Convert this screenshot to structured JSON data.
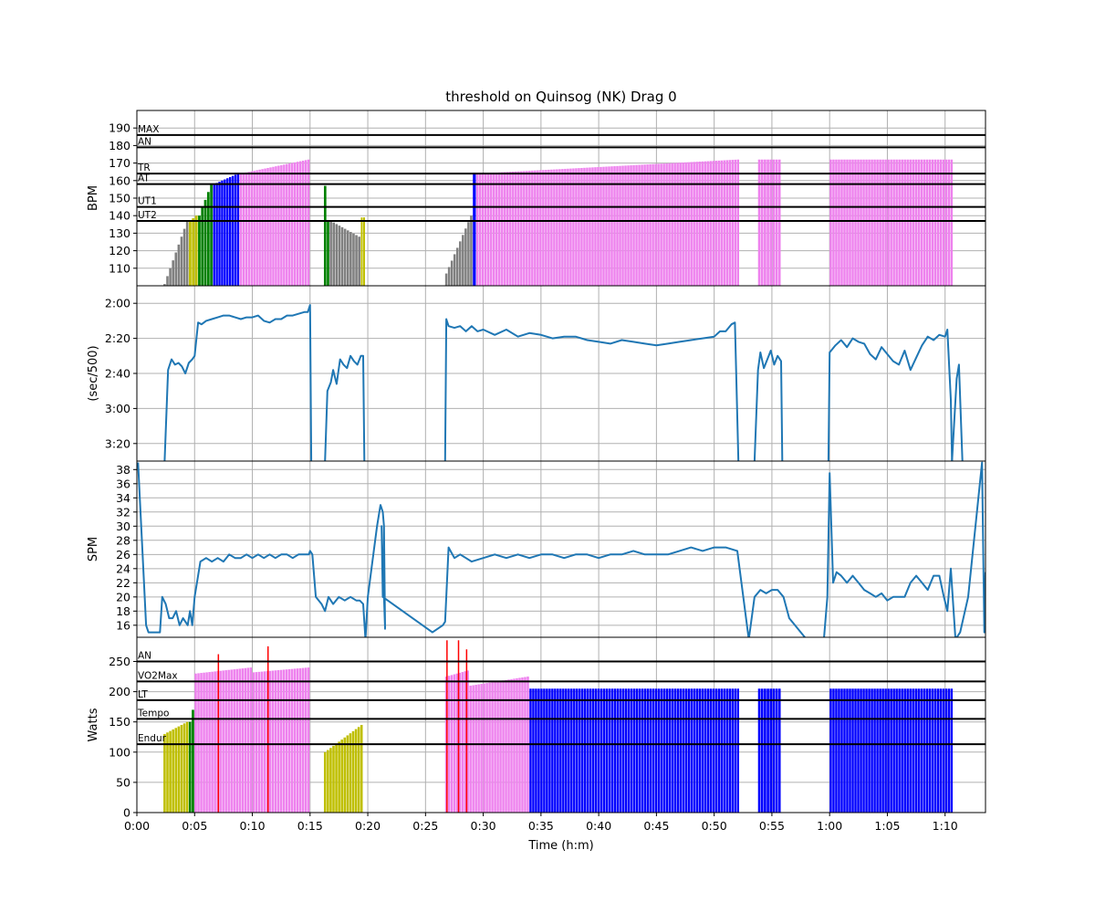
{
  "chart_data": {
    "title": "threshold on Quinsog (NK) Drag 0",
    "xlabel": "Time (h:m)",
    "x_unit": "minutes",
    "xlim": [
      0,
      73.5
    ],
    "x_ticks": [
      0,
      5,
      10,
      15,
      20,
      25,
      30,
      35,
      40,
      45,
      50,
      55,
      60,
      65,
      70
    ],
    "x_tick_labels": [
      "0:00",
      "0:05",
      "0:10",
      "0:15",
      "0:20",
      "0:25",
      "0:30",
      "0:35",
      "0:40",
      "0:45",
      "0:50",
      "0:55",
      "1:00",
      "1:05",
      "1:10"
    ],
    "colors": {
      "gray": "#808080",
      "yellow": "#bfbf00",
      "green": "#008000",
      "blue": "#0000ff",
      "violet": "#ee82ee",
      "red": "#ff0000",
      "line": "#1f77b4"
    },
    "panels": [
      {
        "id": "hr",
        "type": "bar",
        "ylabel": "BPM",
        "ylim": [
          100,
          200
        ],
        "y_ticks": [
          110,
          120,
          130,
          140,
          150,
          160,
          170,
          180,
          190
        ],
        "y_tick_labels": [
          "110",
          "120",
          "130",
          "140",
          "150",
          "160",
          "170",
          "180",
          "190"
        ],
        "zones": [
          {
            "label": "MAX",
            "value": 186
          },
          {
            "label": "AN",
            "value": 179
          },
          {
            "label": "TR",
            "value": 164
          },
          {
            "label": "AT",
            "value": 158
          },
          {
            "label": "UT1",
            "value": 145
          },
          {
            "label": "UT2",
            "value": 137
          }
        ],
        "segments": [
          {
            "x0": 2.3,
            "x1": 4.5,
            "y0": 101,
            "y1": 137,
            "color": "gray"
          },
          {
            "x0": 4.5,
            "x1": 5.3,
            "y0": 137,
            "y1": 140,
            "color": "yellow"
          },
          {
            "x0": 5.3,
            "x1": 6.6,
            "y0": 140,
            "y1": 158,
            "color": "green"
          },
          {
            "x0": 6.6,
            "x1": 8.9,
            "y0": 158,
            "y1": 164,
            "color": "blue"
          },
          {
            "x0": 8.9,
            "x1": 15.0,
            "y0": 164,
            "y1": 172,
            "color": "violet"
          },
          {
            "x0": 16.2,
            "x1": 16.7,
            "y0": 157,
            "y1": 137,
            "color": "green"
          },
          {
            "x0": 16.7,
            "x1": 19.4,
            "y0": 137,
            "y1": 128,
            "color": "gray"
          },
          {
            "x0": 19.4,
            "x1": 19.8,
            "y0": 139,
            "y1": 139,
            "color": "yellow"
          },
          {
            "x0": 26.7,
            "x1": 29.1,
            "y0": 107,
            "y1": 140,
            "color": "gray"
          },
          {
            "x0": 29.1,
            "x1": 29.4,
            "y0": 156,
            "y1": 164,
            "color": "blue"
          },
          {
            "x0": 29.4,
            "x1": 52.2,
            "y0": 164,
            "y1": 172,
            "color": "violet"
          },
          {
            "x0": 53.8,
            "x1": 55.8,
            "y0": 172,
            "y1": 172,
            "color": "violet"
          },
          {
            "x0": 60.0,
            "x1": 70.7,
            "y0": 172,
            "y1": 172,
            "color": "violet"
          }
        ]
      },
      {
        "id": "pace",
        "type": "line",
        "ylabel": "(sec/500)",
        "y_unit": "seconds per 500m",
        "ylim": [
          210,
          110
        ],
        "y_ticks": [
          120,
          140,
          160,
          180,
          200
        ],
        "y_tick_labels": [
          "2:00",
          "2:20",
          "2:40",
          "3:00",
          "3:20"
        ],
        "series": [
          {
            "x": [
              2.4,
              2.7,
              3.0,
              3.3,
              3.6,
              3.9,
              4.2,
              4.5,
              4.8,
              5.0,
              5.3,
              5.6,
              6.0,
              6.5,
              7.0,
              7.5,
              8.0,
              8.5,
              9.0,
              9.5,
              10.0,
              10.5,
              11.0,
              11.5,
              12.0,
              12.5,
              13.0,
              13.5,
              14.0,
              14.5,
              14.8,
              15.0,
              15.1
            ],
            "y": [
              210,
              158,
              152,
              155,
              154,
              156,
              160,
              154,
              152,
              150,
              131,
              132,
              130,
              129,
              128,
              127,
              127,
              128,
              129,
              128,
              128,
              127,
              130,
              131,
              129,
              129,
              127,
              127,
              126,
              125,
              125,
              121,
              210
            ]
          },
          {
            "x": [
              16.3,
              16.5,
              16.8,
              17.0,
              17.3,
              17.6,
              17.9,
              18.2,
              18.5,
              18.8,
              19.1,
              19.4,
              19.6,
              19.7
            ],
            "y": [
              210,
              170,
              165,
              158,
              166,
              152,
              155,
              157,
              150,
              153,
              155,
              150,
              150,
              210
            ]
          },
          {
            "x": [
              26.7,
              26.8,
              27.0,
              27.5,
              28.0,
              28.5,
              29.0,
              29.5,
              30.0,
              31,
              32,
              33,
              34,
              35,
              36,
              37,
              38,
              39,
              40,
              41,
              42,
              43,
              44,
              45,
              46,
              47,
              48,
              49,
              50,
              50.5,
              51,
              51.5,
              51.8,
              52.1
            ],
            "y": [
              210,
              129,
              133,
              134,
              133,
              136,
              133,
              136,
              135,
              138,
              135,
              139,
              137,
              138,
              140,
              139,
              139,
              141,
              142,
              143,
              141,
              142,
              143,
              144,
              143,
              142,
              141,
              140,
              139,
              136,
              136,
              132,
              131,
              210
            ]
          },
          {
            "x": [
              53.5,
              53.8,
              54.0,
              54.3,
              54.6,
              54.9,
              55.2,
              55.5,
              55.8,
              55.9
            ],
            "y": [
              210,
              158,
              148,
              157,
              152,
              147,
              155,
              150,
              153,
              210
            ]
          },
          {
            "x": [
              59.9,
              60.0,
              60.5,
              61,
              61.5,
              62,
              62.5,
              63,
              63.5,
              64,
              64.5,
              65,
              65.5,
              66,
              66.5,
              67,
              67.5,
              68,
              68.5,
              69,
              69.5,
              70,
              70.2,
              70.5,
              70.6
            ],
            "y": [
              210,
              148,
              144,
              141,
              145,
              140,
              142,
              143,
              149,
              152,
              145,
              149,
              153,
              155,
              147,
              158,
              151,
              144,
              139,
              141,
              138,
              139,
              135,
              175,
              210
            ]
          },
          {
            "x": [
              70.6,
              71.0,
              71.2,
              71.5
            ],
            "y": [
              210,
              163,
              155,
              210
            ]
          }
        ]
      },
      {
        "id": "spm",
        "type": "line",
        "ylabel": "SPM",
        "ylim": [
          14.3,
          39.2
        ],
        "y_ticks": [
          16,
          18,
          20,
          22,
          24,
          26,
          28,
          30,
          32,
          34,
          36,
          38
        ],
        "y_tick_labels": [
          "16",
          "18",
          "20",
          "22",
          "24",
          "26",
          "28",
          "30",
          "32",
          "34",
          "36",
          "38"
        ],
        "series": [
          {
            "x": [
              0.1,
              0.8,
              1.0,
              1.5,
              2.0,
              2.2,
              2.5,
              2.8,
              3.1,
              3.4,
              3.7,
              4.0,
              4.4,
              4.6,
              4.8,
              5.0,
              5.5,
              6.0,
              6.5,
              7.0,
              7.5,
              8.0,
              8.5,
              9.0,
              9.5,
              10.0,
              10.5,
              11.0,
              11.5,
              12.0,
              12.5,
              13.0,
              13.5,
              14.0,
              14.5,
              14.9,
              15.0,
              15.2,
              15.5,
              16.0,
              16.3,
              16.6,
              17.0,
              17.5,
              18.0,
              18.5,
              19.0,
              19.3,
              19.6,
              19.8,
              20.0,
              20.4,
              20.8,
              21.0,
              21.1,
              21.3,
              21.4,
              21.5,
              21.2,
              21.3,
              25.6,
              26.5,
              26.7,
              27.0,
              27.5,
              28.0,
              28.5,
              29.0,
              30,
              31,
              32,
              33,
              34,
              35,
              36,
              37,
              38,
              39,
              40,
              41,
              42,
              43,
              44,
              45,
              46,
              47,
              48,
              49,
              50,
              51,
              52.0,
              53.0,
              53.5,
              54,
              54.5,
              55,
              55.5,
              56,
              56.5,
              57,
              57.5,
              58,
              58.5,
              59,
              59.5,
              59.8,
              60.0,
              60.3,
              60.6,
              61,
              61.5,
              62,
              62.5,
              63,
              63.5,
              64,
              64.5,
              65,
              65.5,
              66,
              66.5,
              67,
              67.5,
              68,
              68.5,
              69,
              69.5,
              69.9,
              70.2,
              70.5,
              70.9,
              71.3,
              72.0,
              73.2,
              73.4,
              73.5
            ],
            "y": [
              39,
              16,
              15,
              15,
              15,
              20,
              19,
              17,
              17,
              18,
              16,
              17,
              16,
              18,
              16,
              20,
              25,
              25.5,
              25,
              25.5,
              25,
              26,
              25.5,
              25.5,
              26,
              25.5,
              26,
              25.5,
              26,
              25.5,
              26,
              26,
              25.5,
              26,
              26,
              26,
              26.5,
              26,
              20,
              19,
              18,
              20,
              19,
              20,
              19.5,
              20,
              19.5,
              19.5,
              19,
              14,
              20,
              25,
              30,
              32,
              33,
              32,
              30,
              15.5,
              30,
              20,
              15,
              16,
              16.5,
              27,
              25.5,
              26,
              25.5,
              25,
              25.5,
              26,
              25.5,
              26,
              25.5,
              26,
              26,
              25.5,
              26,
              26,
              25.5,
              26,
              26,
              26.5,
              26,
              26,
              26,
              26.5,
              27,
              26.5,
              27,
              27,
              26.5,
              14,
              20,
              21,
              20.5,
              21,
              21,
              20,
              17,
              16,
              15,
              14,
              14,
              14,
              14,
              20,
              37.5,
              22,
              23.5,
              23,
              22,
              23,
              22,
              21,
              20.5,
              20,
              20.5,
              19.5,
              20,
              20,
              20,
              22,
              23,
              22,
              21,
              23,
              23,
              20,
              18,
              24,
              14,
              15,
              20,
              39,
              15,
              23.5
            ]
          }
        ]
      },
      {
        "id": "power",
        "type": "bar",
        "ylabel": "Watts",
        "ylim": [
          0,
          290
        ],
        "y_ticks": [
          0,
          50,
          100,
          150,
          200,
          250
        ],
        "y_tick_labels": [
          "0",
          "50",
          "100",
          "150",
          "200",
          "250"
        ],
        "zones": [
          {
            "label": "AN",
            "value": 250
          },
          {
            "label": "VO2Max",
            "value": 217
          },
          {
            "label": "LT",
            "value": 186
          },
          {
            "label": "Tempo",
            "value": 155
          },
          {
            "label": "Endur",
            "value": 113
          }
        ],
        "segments": [
          {
            "x0": 2.3,
            "x1": 4.5,
            "y0": 130,
            "y1": 150,
            "color": "yellow"
          },
          {
            "x0": 4.5,
            "x1": 5.0,
            "y0": 150,
            "y1": 170,
            "color": "green"
          },
          {
            "x0": 5.0,
            "x1": 10.0,
            "y0": 230,
            "y1": 240,
            "color": "violet"
          },
          {
            "x0": 10.0,
            "x1": 15.0,
            "y0": 232,
            "y1": 240,
            "color": "violet"
          },
          {
            "x0": 16.2,
            "x1": 19.6,
            "y0": 100,
            "y1": 145,
            "color": "yellow"
          },
          {
            "x0": 26.7,
            "x1": 28.8,
            "y0": 225,
            "y1": 235,
            "color": "violet"
          },
          {
            "x0": 28.8,
            "x1": 34.0,
            "y0": 210,
            "y1": 225,
            "color": "violet"
          },
          {
            "x0": 34.0,
            "x1": 52.2,
            "y0": 205,
            "y1": 205,
            "color": "blue"
          },
          {
            "x0": 53.8,
            "x1": 55.8,
            "y0": 205,
            "y1": 205,
            "color": "blue"
          },
          {
            "x0": 60.0,
            "x1": 70.7,
            "y0": 205,
            "y1": 205,
            "color": "blue"
          }
        ],
        "spikes": [
          {
            "x": 7.0,
            "y": 262,
            "color": "red"
          },
          {
            "x": 11.3,
            "y": 275,
            "color": "red"
          },
          {
            "x": 26.8,
            "y": 285,
            "color": "red"
          },
          {
            "x": 27.8,
            "y": 285,
            "color": "red"
          },
          {
            "x": 28.5,
            "y": 270,
            "color": "red"
          }
        ]
      }
    ]
  }
}
